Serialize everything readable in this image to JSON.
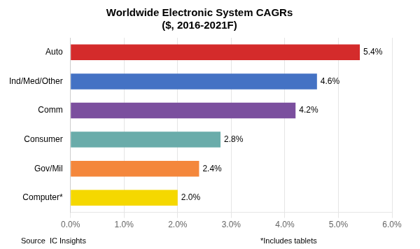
{
  "chart_data": {
    "type": "bar",
    "orientation": "horizontal",
    "title": "Worldwide Electronic System CAGRs\n($, 2016-2021F)",
    "categories": [
      "Computer*",
      "Gov/Mil",
      "Consumer",
      "Comm",
      "Ind/Med/Other",
      "Auto"
    ],
    "values": [
      2.0,
      2.4,
      2.8,
      4.2,
      4.6,
      5.4
    ],
    "value_labels": [
      "2.0%",
      "2.4%",
      "2.8%",
      "4.2%",
      "4.6%",
      "5.4%"
    ],
    "data_labels": true,
    "colors": [
      "#F5D800",
      "#F4873C",
      "#6AACAA",
      "#7B4F9E",
      "#4472C4",
      "#D42B2B"
    ],
    "xlim": [
      0,
      6.0
    ],
    "xticks": [
      {
        "value": 0.0,
        "label": "0.0%"
      },
      {
        "value": 1.0,
        "label": "1.0%"
      },
      {
        "value": 2.0,
        "label": "2.0%"
      },
      {
        "value": 3.0,
        "label": "3.0%"
      },
      {
        "value": 4.0,
        "label": "4.0%"
      },
      {
        "value": 5.0,
        "label": "5.0%"
      },
      {
        "value": 6.0,
        "label": "6.0%"
      }
    ],
    "grid": true,
    "annotations": [
      "Source  IC Insights",
      "*Includes tablets"
    ]
  }
}
